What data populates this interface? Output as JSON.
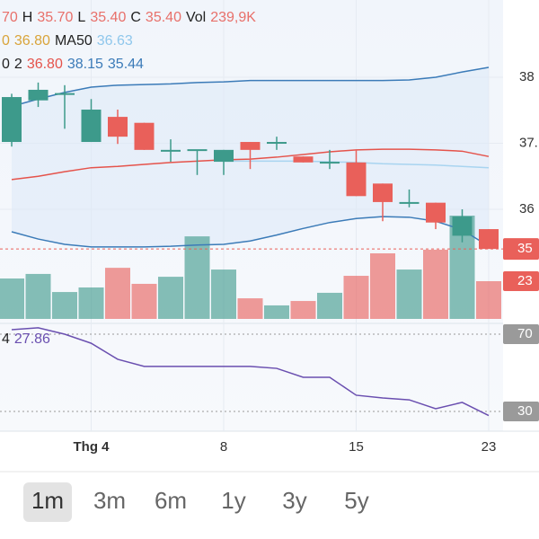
{
  "chart_data": {
    "type": "candlestick",
    "info_lines": [
      [
        {
          "text": "70",
          "color": "#e8706a"
        },
        {
          "text": "H",
          "color": "#222"
        },
        {
          "text": "35.70",
          "color": "#e8706a"
        },
        {
          "text": "L",
          "color": "#222"
        },
        {
          "text": "35.40",
          "color": "#e8706a"
        },
        {
          "text": "C",
          "color": "#222"
        },
        {
          "text": "35.40",
          "color": "#e8706a"
        },
        {
          "text": "Vol",
          "color": "#222"
        },
        {
          "text": "239,9K",
          "color": "#e8706a"
        }
      ],
      [
        {
          "text": "0",
          "color": "#d9a43a"
        },
        {
          "text": "36.80",
          "color": "#d9a43a"
        },
        {
          "text": "MA50",
          "color": "#222"
        },
        {
          "text": "36.63",
          "color": "#8fc7ec"
        }
      ],
      [
        {
          "text": "0",
          "color": "#222"
        },
        {
          "text": "2",
          "color": "#222"
        },
        {
          "text": "36.80",
          "color": "#e5534b"
        },
        {
          "text": "38.15",
          "color": "#3b7bb8"
        },
        {
          "text": "35.44",
          "color": "#3b7bb8"
        }
      ]
    ],
    "rsi_info": [
      {
        "text": "4",
        "color": "#222"
      },
      {
        "text": "27.86",
        "color": "#6a4fb0"
      }
    ],
    "categories": [
      null,
      null,
      null,
      "Thg 4",
      null,
      null,
      null,
      null,
      "8",
      null,
      null,
      null,
      null,
      "15",
      null,
      null,
      null,
      null,
      "23"
    ],
    "open": [
      37.02,
      37.65,
      37.75,
      37.02,
      37.4,
      37.31,
      36.89,
      36.9,
      36.72,
      37.02,
      37.0,
      36.8,
      36.71,
      36.71,
      36.39,
      36.1,
      36.1,
      35.6,
      35.7
    ],
    "high": [
      37.75,
      37.92,
      37.88,
      37.67,
      37.51,
      37.31,
      37.06,
      36.9,
      36.9,
      37.02,
      37.1,
      36.8,
      36.9,
      36.9,
      36.39,
      36.3,
      36.1,
      36.0,
      35.7
    ],
    "low": [
      36.95,
      37.55,
      37.22,
      37.02,
      36.99,
      36.9,
      36.72,
      36.52,
      36.52,
      36.61,
      36.9,
      36.71,
      36.61,
      36.2,
      35.82,
      36.03,
      35.7,
      35.5,
      35.4
    ],
    "close": [
      37.7,
      37.81,
      37.76,
      37.51,
      37.1,
      36.9,
      36.9,
      36.91,
      36.9,
      36.9,
      37.02,
      36.71,
      36.72,
      36.2,
      36.11,
      36.11,
      35.8,
      35.89,
      35.4
    ],
    "volume": [
      257,
      286,
      171,
      200,
      325,
      223,
      268,
      525,
      314,
      131,
      86,
      114,
      166,
      274,
      417,
      314,
      440,
      657,
      239.9
    ],
    "up_color": "#3d9a8b",
    "down_color": "#e9605a",
    "ma20": {
      "color": "#e5534b",
      "values": [
        36.45,
        36.5,
        36.57,
        36.63,
        36.65,
        36.68,
        36.71,
        36.73,
        36.75,
        36.76,
        36.79,
        36.83,
        36.87,
        36.9,
        36.91,
        36.91,
        36.9,
        36.88,
        36.8
      ]
    },
    "ma50": {
      "color": "#a8d4f0",
      "values": [
        null,
        null,
        null,
        null,
        null,
        null,
        null,
        null,
        36.73,
        36.73,
        36.73,
        36.73,
        36.72,
        36.71,
        36.69,
        36.68,
        36.67,
        36.65,
        36.63
      ]
    },
    "bb_upper": {
      "color": "#3b7bb8",
      "values": [
        37.56,
        37.67,
        37.77,
        37.85,
        37.88,
        37.89,
        37.9,
        37.92,
        37.93,
        37.95,
        37.95,
        37.95,
        37.95,
        37.95,
        37.95,
        37.96,
        38.0,
        38.08,
        38.15
      ]
    },
    "bb_lower": {
      "color": "#3b7bb8",
      "values": [
        35.66,
        35.55,
        35.47,
        35.43,
        35.43,
        35.43,
        35.44,
        35.46,
        35.47,
        35.52,
        35.61,
        35.71,
        35.8,
        35.86,
        35.89,
        35.88,
        35.82,
        35.69,
        35.44
      ]
    },
    "rsi": {
      "color": "#6a4fb0",
      "values": [
        72.3,
        73.3,
        70.0,
        65.3,
        57.0,
        53.3,
        53.3,
        53.3,
        53.3,
        53.3,
        52.3,
        47.7,
        47.7,
        38.4,
        37.0,
        36.0,
        31.4,
        34.7,
        27.86
      ]
    },
    "yticks": [
      36,
      {
        "value": 37,
        "label": "37."
      },
      38
    ],
    "rsi_ticks": [
      70,
      30
    ],
    "last_price_label": "35",
    "last_volume_label": "23",
    "ranges": [
      "1m",
      "3m",
      "6m",
      "1y",
      "3y",
      "5y"
    ],
    "selected_range": 0
  }
}
